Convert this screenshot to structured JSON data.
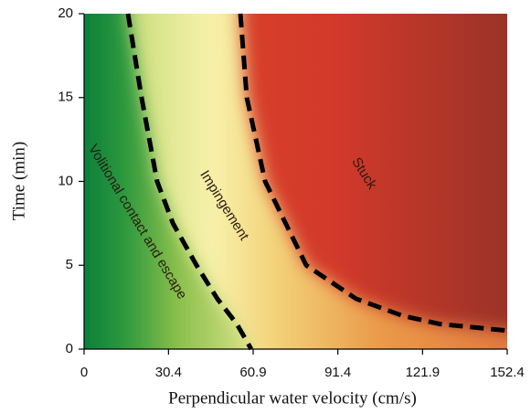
{
  "chart_data": {
    "type": "line",
    "xlabel": "Perpendicular water velocity (cm/s)",
    "ylabel": "Time (min)",
    "xlim": [
      0,
      152.4
    ],
    "xticks": [
      0,
      30.4,
      60.9,
      91.4,
      121.9,
      152.4
    ],
    "ylim": [
      0,
      20
    ],
    "yticks": [
      0,
      5,
      10,
      15,
      20
    ],
    "series": [
      {
        "color": "#000000",
        "x": [
          15.8,
          20.7,
          26.3,
          32,
          40.5,
          48,
          55,
          60.2
        ],
        "values": [
          20,
          15,
          10,
          7.5,
          5,
          3,
          1.5,
          0
        ]
      },
      {
        "color": "#000000",
        "x": [
          56.3,
          58.6,
          65.2,
          80,
          98,
          114.5,
          128,
          152.4
        ],
        "values": [
          20,
          15,
          10,
          5,
          3,
          2,
          1.5,
          1.1
        ]
      }
    ],
    "annotations": [
      "Volitional contact and escape",
      "Impingement",
      "Stuck"
    ]
  }
}
